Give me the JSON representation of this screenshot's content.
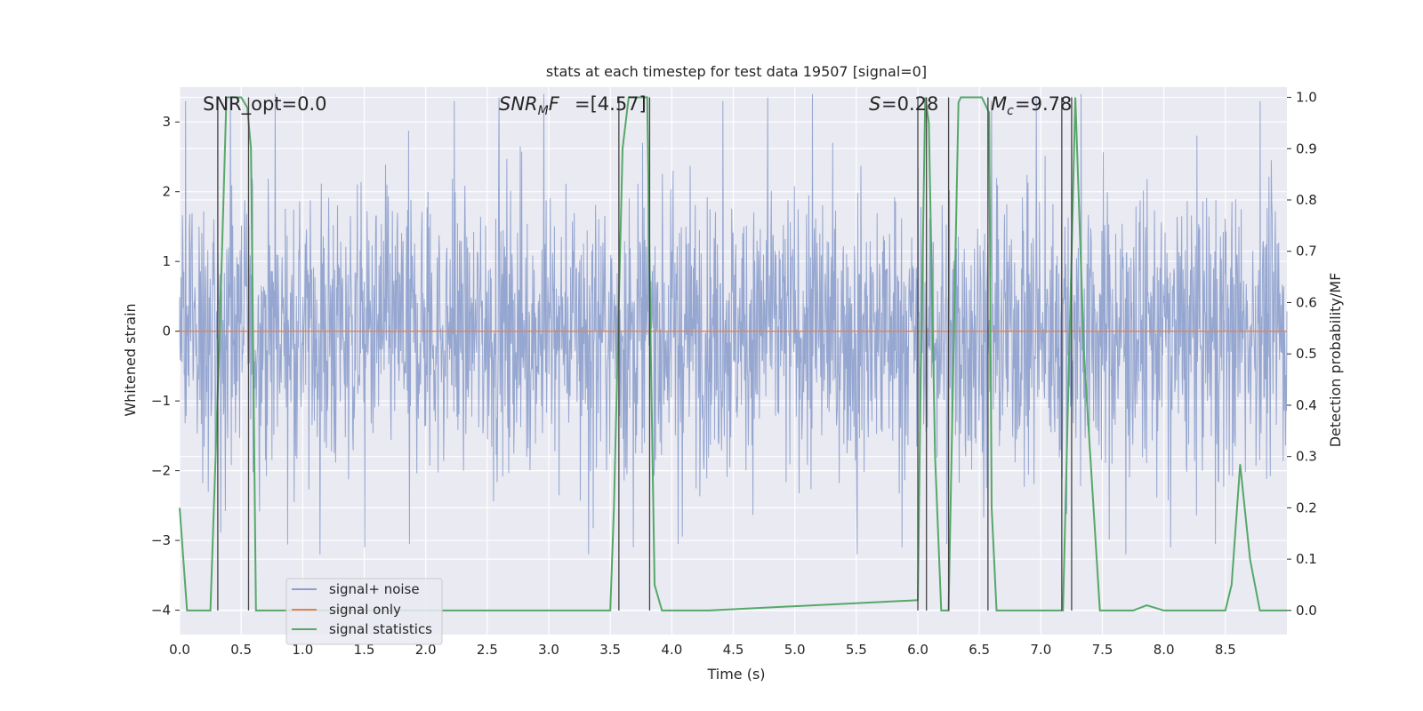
{
  "chart_data": {
    "type": "line",
    "title": "stats at each timestep for test data 19507 [signal=0]",
    "xlabel": "Time (s)",
    "ylabel": "Whitened strain",
    "y2label": "Detection probability/MF",
    "xlim": [
      0.0,
      9.0
    ],
    "ylim": [
      -4.35,
      3.5
    ],
    "y2lim": [
      -0.047,
      1.02
    ],
    "xticks": [
      "0.0",
      "0.5",
      "1.0",
      "1.5",
      "2.0",
      "2.5",
      "3.0",
      "3.5",
      "4.0",
      "4.5",
      "5.0",
      "5.5",
      "6.0",
      "6.5",
      "7.0",
      "7.5",
      "8.0",
      "8.5"
    ],
    "yticks": [
      {
        "v": 3,
        "label": "3"
      },
      {
        "v": 2,
        "label": "2"
      },
      {
        "v": 1,
        "label": "1"
      },
      {
        "v": 0,
        "label": "0"
      },
      {
        "v": -1,
        "label": "−1"
      },
      {
        "v": -2,
        "label": "−2"
      },
      {
        "v": -3,
        "label": "−3"
      },
      {
        "v": -4,
        "label": "−4"
      }
    ],
    "y2ticks": [
      "0.0",
      "0.1",
      "0.2",
      "0.3",
      "0.4",
      "0.5",
      "0.6",
      "0.7",
      "0.8",
      "0.9",
      "1.0"
    ],
    "annotations": {
      "snr_opt": "SNR_opt=0.0",
      "snr_mf": "=[4.57]",
      "s_stat": "=0.28",
      "mc": "=9.78"
    },
    "legend": {
      "position": "lower-left",
      "entries": [
        "signal+ noise",
        "signal only",
        "signal statistics"
      ]
    },
    "colors": {
      "noise": "#8c9fcc",
      "signal": "#dd8452",
      "stats": "#55a868",
      "plot_bg": "#eaeaf2",
      "grid": "#ffffff",
      "vline": "#444444"
    },
    "series": [
      {
        "name": "signal+ noise",
        "type": "noise-band",
        "typical_amplitude": 1.0,
        "peak_values": [
          3.3,
          3.35,
          3.4,
          -3.2,
          -3.1,
          -3.05
        ]
      },
      {
        "name": "signal only",
        "x": [
          0.0,
          9.0
        ],
        "values": [
          0.0,
          0.0
        ]
      },
      {
        "name": "signal statistics",
        "x": [
          0.0,
          0.06,
          0.25,
          0.32,
          0.38,
          0.5,
          0.55,
          0.58,
          0.62,
          0.64,
          1.0,
          3.5,
          3.53,
          3.6,
          3.65,
          3.8,
          3.83,
          3.86,
          3.92,
          3.95,
          4.1,
          4.3,
          6.0,
          6.02,
          6.06,
          6.09,
          6.14,
          6.19,
          6.25,
          6.29,
          6.33,
          6.35,
          6.42,
          6.52,
          6.58,
          6.6,
          6.64,
          6.7,
          7.18,
          7.22,
          7.28,
          7.35,
          7.48,
          7.75,
          7.86,
          8.0,
          8.5,
          8.55,
          8.62,
          8.7,
          8.78,
          8.85,
          9.0
        ],
        "values": [
          0.2,
          0.0,
          0.0,
          0.5,
          1.0,
          1.0,
          0.98,
          0.9,
          0.0,
          0.0,
          0.0,
          0.0,
          0.2,
          0.9,
          1.0,
          1.0,
          0.5,
          0.05,
          0.0,
          0.0,
          0.0,
          0.0,
          0.02,
          0.4,
          1.0,
          0.95,
          0.3,
          0.0,
          0.0,
          0.5,
          0.99,
          1.0,
          1.0,
          1.0,
          0.97,
          0.2,
          0.0,
          0.0,
          0.0,
          0.4,
          1.0,
          0.5,
          0.0,
          0.0,
          0.01,
          0.0,
          0.0,
          0.05,
          0.285,
          0.1,
          0.0,
          0.0,
          0.0
        ]
      },
      {
        "name": "detection-windows",
        "type": "vlines",
        "x": [
          0.31,
          0.56,
          3.57,
          3.82,
          6.0,
          6.07,
          6.25,
          6.57,
          7.17,
          7.25
        ]
      }
    ]
  }
}
